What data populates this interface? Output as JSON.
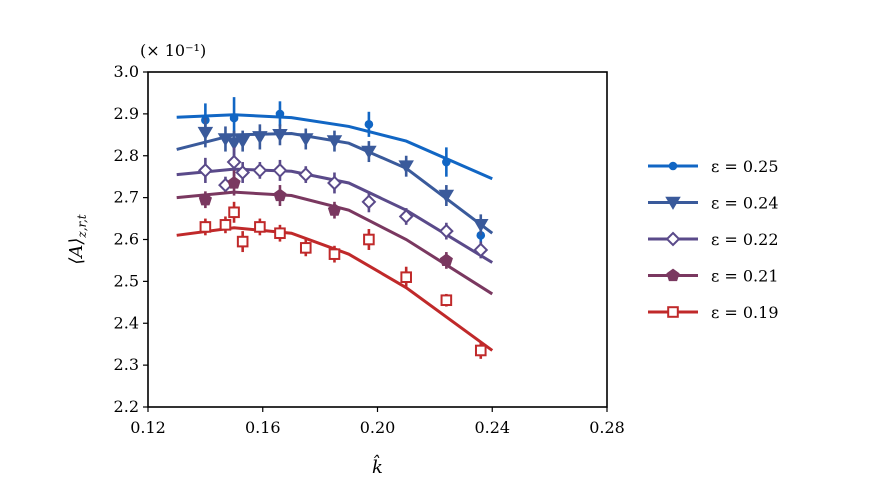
{
  "chart_data": {
    "type": "scatter",
    "title": "",
    "xlabel": "k̂",
    "ylabel": "⟨A⟩z,r,t",
    "ylabel_main": "⟨A⟩",
    "ylabel_sub": "z,r,t",
    "y_multiplier": "(× 10⁻¹)",
    "xlim": [
      0.12,
      0.28
    ],
    "ylim": [
      2.2,
      3.0
    ],
    "xticks": [
      "0.12",
      "0.16",
      "0.20",
      "0.24",
      "0.28"
    ],
    "yticks": [
      "2.2",
      "2.3",
      "2.4",
      "2.5",
      "2.6",
      "2.7",
      "2.8",
      "2.9",
      "3.0"
    ],
    "grid": false,
    "legend_position": "right",
    "series": [
      {
        "name": "ε = 0.25",
        "color": "#1166c4",
        "marker": "circle",
        "points": [
          [
            0.14,
            2.885,
            0.04
          ],
          [
            0.15,
            2.89,
            0.05
          ],
          [
            0.166,
            2.9,
            0.03
          ],
          [
            0.197,
            2.875,
            0.03
          ],
          [
            0.224,
            2.785,
            0.035
          ],
          [
            0.236,
            2.61,
            0.02
          ]
        ],
        "fit": [
          [
            0.13,
            2.892
          ],
          [
            0.15,
            2.898
          ],
          [
            0.17,
            2.891
          ],
          [
            0.19,
            2.87
          ],
          [
            0.21,
            2.835
          ],
          [
            0.24,
            2.745
          ]
        ]
      },
      {
        "name": "ε = 0.24",
        "color": "#3a5a9b",
        "marker": "triangle-down",
        "points": [
          [
            0.14,
            2.855,
            0.035
          ],
          [
            0.147,
            2.84,
            0.03
          ],
          [
            0.15,
            2.83,
            0.03
          ],
          [
            0.153,
            2.835,
            0.025
          ],
          [
            0.159,
            2.845,
            0.03
          ],
          [
            0.166,
            2.85,
            0.025
          ],
          [
            0.175,
            2.84,
            0.025
          ],
          [
            0.185,
            2.835,
            0.025
          ],
          [
            0.197,
            2.81,
            0.025
          ],
          [
            0.21,
            2.775,
            0.025
          ],
          [
            0.224,
            2.705,
            0.025
          ],
          [
            0.236,
            2.635,
            0.025
          ]
        ],
        "fit": [
          [
            0.13,
            2.815
          ],
          [
            0.15,
            2.85
          ],
          [
            0.17,
            2.853
          ],
          [
            0.19,
            2.83
          ],
          [
            0.21,
            2.77
          ],
          [
            0.24,
            2.615
          ]
        ]
      },
      {
        "name": "ε = 0.22",
        "color": "#5a4a8a",
        "marker": "diamond",
        "points": [
          [
            0.14,
            2.765,
            0.03
          ],
          [
            0.147,
            2.73,
            0.02
          ],
          [
            0.15,
            2.785,
            0.035
          ],
          [
            0.153,
            2.76,
            0.025
          ],
          [
            0.159,
            2.765,
            0.02
          ],
          [
            0.166,
            2.765,
            0.025
          ],
          [
            0.175,
            2.755,
            0.02
          ],
          [
            0.185,
            2.735,
            0.025
          ],
          [
            0.197,
            2.69,
            0.025
          ],
          [
            0.21,
            2.655,
            0.02
          ],
          [
            0.224,
            2.62,
            0.02
          ],
          [
            0.236,
            2.575,
            0.02
          ]
        ],
        "fit": [
          [
            0.13,
            2.755
          ],
          [
            0.15,
            2.768
          ],
          [
            0.17,
            2.763
          ],
          [
            0.19,
            2.735
          ],
          [
            0.21,
            2.67
          ],
          [
            0.24,
            2.545
          ]
        ]
      },
      {
        "name": "ε = 0.21",
        "color": "#7a3860",
        "marker": "pentagon",
        "points": [
          [
            0.14,
            2.695,
            0.02
          ],
          [
            0.15,
            2.735,
            0.03
          ],
          [
            0.166,
            2.705,
            0.025
          ],
          [
            0.185,
            2.67,
            0.02
          ],
          [
            0.224,
            2.55,
            0.02
          ]
        ],
        "fit": [
          [
            0.13,
            2.7
          ],
          [
            0.15,
            2.713
          ],
          [
            0.17,
            2.705
          ],
          [
            0.19,
            2.67
          ],
          [
            0.21,
            2.6
          ],
          [
            0.24,
            2.47
          ]
        ]
      },
      {
        "name": "ε = 0.19",
        "color": "#c0292a",
        "marker": "square",
        "points": [
          [
            0.14,
            2.63,
            0.02
          ],
          [
            0.147,
            2.635,
            0.02
          ],
          [
            0.15,
            2.665,
            0.025
          ],
          [
            0.153,
            2.595,
            0.025
          ],
          [
            0.159,
            2.63,
            0.02
          ],
          [
            0.166,
            2.615,
            0.02
          ],
          [
            0.175,
            2.58,
            0.02
          ],
          [
            0.185,
            2.565,
            0.02
          ],
          [
            0.197,
            2.6,
            0.025
          ],
          [
            0.21,
            2.51,
            0.025
          ],
          [
            0.224,
            2.455,
            0.015
          ],
          [
            0.236,
            2.335,
            0.02
          ]
        ],
        "fit": [
          [
            0.13,
            2.61
          ],
          [
            0.15,
            2.628
          ],
          [
            0.17,
            2.615
          ],
          [
            0.19,
            2.565
          ],
          [
            0.21,
            2.485
          ],
          [
            0.24,
            2.335
          ]
        ]
      }
    ]
  }
}
